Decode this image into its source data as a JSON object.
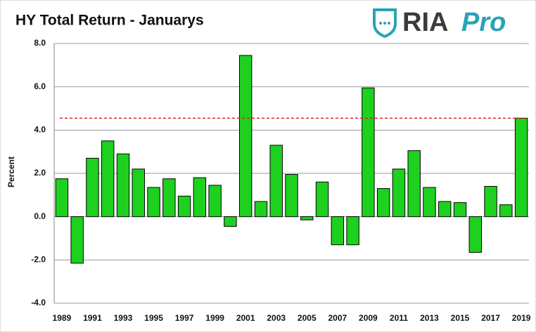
{
  "chart_data": {
    "type": "bar",
    "title": "HY Total Return - Januarys",
    "y_label": "Percent",
    "categories": [
      "1989",
      null,
      "1991",
      null,
      "1993",
      null,
      "1995",
      null,
      "1997",
      null,
      "1999",
      null,
      "2001",
      null,
      "2003",
      null,
      "2005",
      null,
      "2007",
      null,
      "2009",
      null,
      "2011",
      null,
      "2013",
      null,
      "2015",
      null,
      "2017",
      null,
      "2019"
    ],
    "values": [
      1.75,
      -2.15,
      2.7,
      3.5,
      2.9,
      2.2,
      1.35,
      1.75,
      0.95,
      1.8,
      1.45,
      -0.45,
      7.45,
      0.7,
      3.3,
      1.95,
      -0.15,
      1.6,
      -1.3,
      -1.3,
      5.95,
      1.3,
      2.2,
      3.05,
      1.35,
      0.7,
      0.65,
      -1.65,
      1.4,
      0.55,
      4.55
    ],
    "color": "#1fd11f",
    "ylim": [
      -4,
      8
    ],
    "yticks": [
      {
        "value": -4,
        "label": "-4.0"
      },
      {
        "value": -2,
        "label": "-2.0"
      },
      {
        "value": 0,
        "label": "0.0"
      },
      {
        "value": 2,
        "label": "2.0"
      },
      {
        "value": 4,
        "label": "4.0"
      },
      {
        "value": 6,
        "label": "6.0"
      },
      {
        "value": 8,
        "label": "8.0"
      }
    ],
    "grid": true,
    "reference_line": {
      "value": 4.55,
      "color": "#e02020"
    }
  },
  "logo": {
    "brand": "RIA",
    "product": "Pro"
  }
}
